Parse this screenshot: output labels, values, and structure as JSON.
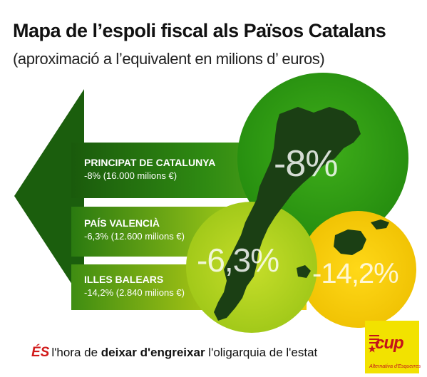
{
  "title": "Mapa de l’espoli fiscal als Països Catalans",
  "subtitle": "(aproximació a l’equivalent en milions d’ euros)",
  "regions": [
    {
      "name": "PRINCIPAT DE CATALUNYA",
      "detail": "-8% (16.000 milions €)",
      "percent": "-8%"
    },
    {
      "name": "PAÍS VALENCIÀ",
      "detail": "-6,3% (12.600 milions €)",
      "percent": "-6,3%"
    },
    {
      "name": "ILLES BALEARS",
      "detail": "-14,2% (2.840 milions €)",
      "percent": "-14,2%"
    }
  ],
  "slogan": {
    "es": "ÉS",
    "part1": "l'hora de",
    "bold": "deixar d'engreixar",
    "part2": "l'oligarquia de l'estat"
  },
  "logo": {
    "name": "cup",
    "tagline": "Alternativa d'Esquerres"
  },
  "colors": {
    "dark_green": "#1f6e10",
    "mid_green": "#5aab1c",
    "light_green": "#a8cc1a",
    "yellow": "#f3cf05",
    "map": "#1b3f14"
  }
}
